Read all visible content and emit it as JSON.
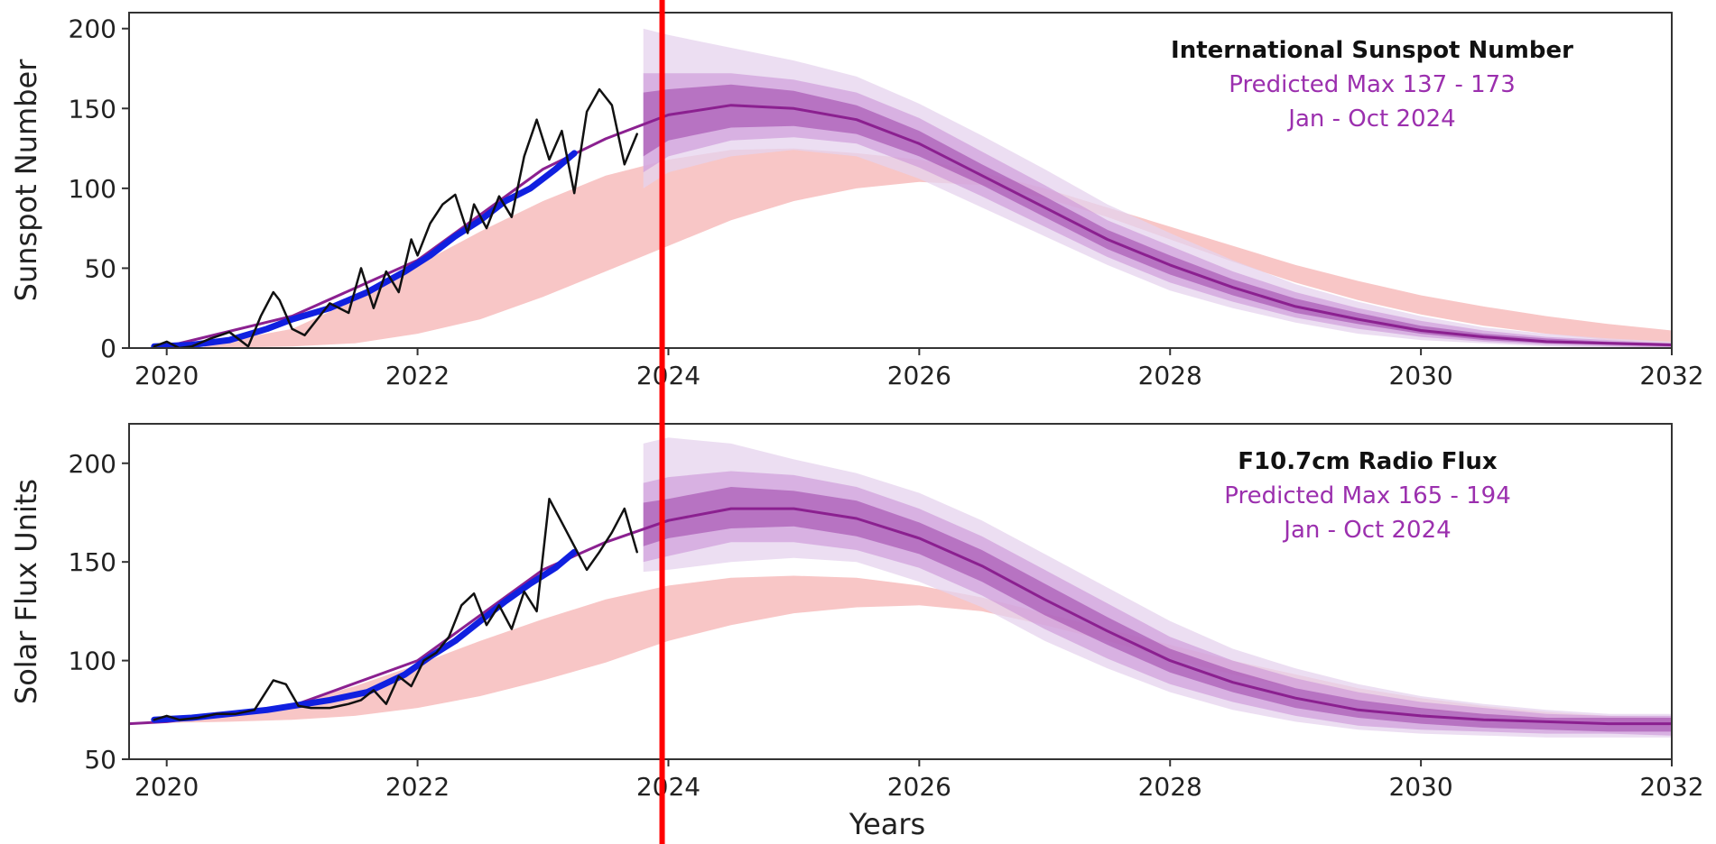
{
  "colors": {
    "observed_monthly": "#111111",
    "observed_smoothed": "#1020e0",
    "prediction_line": "#8b2090",
    "prediction_band_outer": "#e6d3ee",
    "prediction_band_middle": "#c98dd6",
    "prediction_band_inner": "#9c40a8",
    "expert_panel_band": "#f4a8a8",
    "marker_line": "#ff0000",
    "annotation_subtitle": "#9b2fae"
  },
  "x_axis_label": "Years",
  "chart_data": [
    {
      "type": "line",
      "ylabel": "Sunspot Number",
      "xlim": [
        2019.7,
        2032
      ],
      "ylim": [
        0,
        210
      ],
      "x_ticks": [
        "2020",
        "2022",
        "2024",
        "2026",
        "2028",
        "2030",
        "2032"
      ],
      "y_ticks": [
        "0",
        "50",
        "100",
        "150",
        "200"
      ],
      "annotation": {
        "title": "International Sunspot Number",
        "line1": "Predicted Max 137 - 173",
        "line2": "Jan - Oct 2024"
      },
      "vertical_marker_x": 2023.95,
      "observed_monthly": {
        "x": [
          2019.9,
          2020.0,
          2020.1,
          2020.2,
          2020.35,
          2020.5,
          2020.65,
          2020.75,
          2020.85,
          2020.9,
          2021.0,
          2021.1,
          2021.2,
          2021.3,
          2021.45,
          2021.55,
          2021.65,
          2021.75,
          2021.85,
          2021.95,
          2022.0,
          2022.1,
          2022.2,
          2022.3,
          2022.4,
          2022.45,
          2022.55,
          2022.65,
          2022.75,
          2022.85,
          2022.95,
          2023.05,
          2023.15,
          2023.25,
          2023.35,
          2023.45,
          2023.55,
          2023.65,
          2023.75
        ],
        "y": [
          1,
          4,
          0,
          1,
          6,
          10,
          1,
          20,
          35,
          30,
          12,
          8,
          18,
          28,
          22,
          50,
          25,
          48,
          35,
          68,
          58,
          78,
          90,
          96,
          72,
          90,
          75,
          95,
          82,
          120,
          143,
          118,
          136,
          97,
          148,
          162,
          152,
          115,
          134
        ]
      },
      "observed_smoothed": {
        "x": [
          2019.9,
          2020.2,
          2020.5,
          2020.8,
          2021.0,
          2021.3,
          2021.6,
          2021.9,
          2022.1,
          2022.3,
          2022.5,
          2022.7,
          2022.9,
          2023.1,
          2023.25
        ],
        "y": [
          1,
          2,
          5,
          12,
          18,
          25,
          35,
          48,
          58,
          70,
          80,
          92,
          100,
          112,
          122
        ]
      },
      "prediction": {
        "x": [
          2020.0,
          2021.0,
          2022.0,
          2023.0,
          2023.5,
          2024.0,
          2024.5,
          2025.0,
          2025.5,
          2026.0,
          2026.5,
          2027.0,
          2027.5,
          2028.0,
          2028.5,
          2029.0,
          2029.5,
          2030.0,
          2030.5,
          2031.0,
          2031.5,
          2032.0
        ],
        "y": [
          1,
          20,
          55,
          112,
          131,
          146,
          152,
          150,
          143,
          128,
          108,
          88,
          68,
          52,
          38,
          26,
          18,
          11,
          7,
          4,
          3,
          2
        ]
      },
      "prediction_band_inner": {
        "x": [
          2023.8,
          2024.0,
          2024.5,
          2025.0,
          2025.5,
          2026.0,
          2026.5,
          2027.0,
          2027.5,
          2028.0,
          2028.5,
          2029.0,
          2029.5,
          2030.0,
          2030.5,
          2031.0,
          2031.5,
          2032.0
        ],
        "low": [
          120,
          130,
          138,
          139,
          134,
          120,
          102,
          82,
          62,
          46,
          33,
          22,
          15,
          9,
          5,
          3,
          2,
          1
        ],
        "high": [
          160,
          162,
          165,
          161,
          152,
          136,
          115,
          95,
          74,
          58,
          43,
          31,
          22,
          14,
          9,
          6,
          4,
          3
        ]
      },
      "prediction_band_middle": {
        "x": [
          2023.8,
          2024.0,
          2024.5,
          2025.0,
          2025.5,
          2026.0,
          2026.5,
          2027.0,
          2027.5,
          2028.0,
          2028.5,
          2029.0,
          2029.5,
          2030.0,
          2030.5,
          2031.0,
          2031.5,
          2032.0
        ],
        "low": [
          110,
          120,
          130,
          132,
          128,
          113,
          95,
          76,
          57,
          41,
          29,
          19,
          12,
          7,
          4,
          2,
          1,
          0
        ],
        "high": [
          172,
          172,
          172,
          168,
          160,
          144,
          123,
          102,
          80,
          64,
          48,
          35,
          25,
          17,
          11,
          7,
          5,
          3
        ]
      },
      "prediction_band_outer": {
        "x": [
          2023.8,
          2024.0,
          2024.5,
          2025.0,
          2025.5,
          2026.0,
          2026.5,
          2027.0,
          2027.5,
          2028.0,
          2028.5,
          2029.0,
          2029.5,
          2030.0,
          2030.5,
          2031.0,
          2031.5,
          2032.0
        ],
        "low": [
          100,
          110,
          120,
          124,
          120,
          106,
          88,
          70,
          52,
          36,
          25,
          16,
          9,
          5,
          3,
          1,
          0,
          0
        ],
        "high": [
          200,
          196,
          188,
          180,
          170,
          153,
          133,
          112,
          90,
          72,
          55,
          40,
          29,
          20,
          13,
          9,
          6,
          4
        ]
      },
      "expert_panel_band": {
        "x": [
          2020.3,
          2021.0,
          2021.5,
          2022.0,
          2022.5,
          2023.0,
          2023.5,
          2024.0,
          2024.5,
          2025.0,
          2025.5,
          2026.0,
          2026.5,
          2027.0,
          2027.5,
          2028.0,
          2028.5,
          2029.0,
          2029.5,
          2030.0,
          2030.5,
          2031.0,
          2031.5,
          2032.0
        ],
        "low": [
          0,
          1,
          3,
          9,
          18,
          32,
          48,
          64,
          80,
          92,
          100,
          104,
          102,
          94,
          82,
          68,
          54,
          41,
          30,
          21,
          14,
          9,
          5,
          3
        ],
        "high": [
          2,
          12,
          30,
          52,
          73,
          92,
          108,
          118,
          124,
          125,
          122,
          118,
          110,
          100,
          88,
          76,
          64,
          52,
          42,
          33,
          26,
          20,
          15,
          11
        ]
      }
    },
    {
      "type": "line",
      "ylabel": "Solar Flux Units",
      "xlim": [
        2019.7,
        2032
      ],
      "ylim": [
        50,
        220
      ],
      "x_ticks": [
        "2020",
        "2022",
        "2024",
        "2026",
        "2028",
        "2030",
        "2032"
      ],
      "y_ticks": [
        "50",
        "100",
        "150",
        "200"
      ],
      "annotation": {
        "title": "F10.7cm Radio Flux",
        "line1": "Predicted Max 165 - 194",
        "line2": "Jan - Oct 2024"
      },
      "vertical_marker_x": 2023.95,
      "observed_monthly": {
        "x": [
          2019.9,
          2020.0,
          2020.1,
          2020.25,
          2020.4,
          2020.55,
          2020.7,
          2020.85,
          2020.95,
          2021.05,
          2021.15,
          2021.3,
          2021.45,
          2021.55,
          2021.65,
          2021.75,
          2021.85,
          2021.95,
          2022.05,
          2022.15,
          2022.25,
          2022.35,
          2022.45,
          2022.55,
          2022.65,
          2022.75,
          2022.85,
          2022.95,
          2023.05,
          2023.15,
          2023.25,
          2023.35,
          2023.45,
          2023.55,
          2023.65,
          2023.75
        ],
        "y": [
          70,
          72,
          70,
          71,
          73,
          73,
          75,
          90,
          88,
          77,
          76,
          76,
          78,
          80,
          85,
          78,
          92,
          87,
          100,
          104,
          112,
          128,
          134,
          118,
          128,
          116,
          135,
          125,
          182,
          170,
          158,
          146,
          155,
          165,
          177,
          155
        ]
      },
      "observed_smoothed": {
        "x": [
          2019.9,
          2020.2,
          2020.5,
          2020.8,
          2021.0,
          2021.3,
          2021.6,
          2021.9,
          2022.1,
          2022.3,
          2022.5,
          2022.7,
          2022.9,
          2023.1,
          2023.25
        ],
        "y": [
          70,
          71,
          73,
          75,
          77,
          80,
          84,
          93,
          102,
          110,
          120,
          130,
          139,
          147,
          155
        ]
      },
      "prediction": {
        "x": [
          2019.7,
          2020.0,
          2021.0,
          2022.0,
          2023.0,
          2023.5,
          2024.0,
          2024.5,
          2025.0,
          2025.5,
          2026.0,
          2026.5,
          2027.0,
          2027.5,
          2028.0,
          2028.5,
          2029.0,
          2029.5,
          2030.0,
          2030.5,
          2031.0,
          2031.5,
          2032.0
        ],
        "y": [
          68,
          69,
          77,
          100,
          146,
          160,
          171,
          177,
          177,
          172,
          162,
          148,
          131,
          115,
          100,
          89,
          81,
          75,
          72,
          70,
          69,
          68,
          68
        ]
      },
      "prediction_band_inner": {
        "x": [
          2023.8,
          2024.0,
          2024.5,
          2025.0,
          2025.5,
          2026.0,
          2026.5,
          2027.0,
          2027.5,
          2028.0,
          2028.5,
          2029.0,
          2029.5,
          2030.0,
          2030.5,
          2031.0,
          2031.5,
          2032.0
        ],
        "low": [
          158,
          162,
          167,
          168,
          163,
          154,
          140,
          123,
          108,
          94,
          84,
          76,
          71,
          68,
          66,
          65,
          64,
          64
        ],
        "high": [
          180,
          182,
          188,
          186,
          181,
          170,
          156,
          139,
          122,
          106,
          95,
          86,
          80,
          76,
          73,
          71,
          71,
          71
        ]
      },
      "prediction_band_middle": {
        "x": [
          2023.8,
          2024.0,
          2024.5,
          2025.0,
          2025.5,
          2026.0,
          2026.5,
          2027.0,
          2027.5,
          2028.0,
          2028.5,
          2029.0,
          2029.5,
          2030.0,
          2030.5,
          2031.0,
          2031.5,
          2032.0
        ],
        "low": [
          150,
          153,
          160,
          160,
          156,
          147,
          133,
          116,
          101,
          88,
          79,
          72,
          67,
          65,
          64,
          63,
          63,
          62
        ],
        "high": [
          190,
          193,
          196,
          194,
          188,
          177,
          163,
          146,
          129,
          112,
          100,
          91,
          84,
          79,
          76,
          73,
          72,
          72
        ]
      },
      "prediction_band_outer": {
        "x": [
          2023.8,
          2024.0,
          2024.5,
          2025.0,
          2025.5,
          2026.0,
          2026.5,
          2027.0,
          2027.5,
          2028.0,
          2028.5,
          2029.0,
          2029.5,
          2030.0,
          2030.5,
          2031.0,
          2031.5,
          2032.0
        ],
        "low": [
          145,
          146,
          150,
          152,
          150,
          140,
          127,
          110,
          96,
          84,
          75,
          69,
          65,
          63,
          62,
          61,
          61,
          61
        ],
        "high": [
          210,
          213,
          210,
          202,
          195,
          185,
          171,
          154,
          137,
          120,
          106,
          96,
          88,
          82,
          78,
          75,
          73,
          73
        ]
      },
      "expert_panel_band": {
        "x": [
          2019.7,
          2020.5,
          2021.0,
          2021.5,
          2022.0,
          2022.5,
          2023.0,
          2023.5,
          2024.0,
          2024.5,
          2025.0,
          2025.5,
          2026.0,
          2026.5,
          2027.0,
          2027.5,
          2028.0,
          2028.5,
          2029.0,
          2029.5,
          2030.0,
          2030.5,
          2031.0,
          2031.5,
          2032.0
        ],
        "low": [
          68,
          69,
          70,
          72,
          76,
          82,
          90,
          99,
          110,
          118,
          124,
          127,
          128,
          125,
          118,
          110,
          101,
          93,
          86,
          80,
          75,
          72,
          70,
          69,
          68
        ],
        "high": [
          68,
          72,
          78,
          87,
          98,
          110,
          121,
          131,
          138,
          142,
          143,
          142,
          138,
          132,
          124,
          116,
          108,
          100,
          93,
          86,
          81,
          77,
          74,
          72,
          71
        ]
      }
    }
  ]
}
